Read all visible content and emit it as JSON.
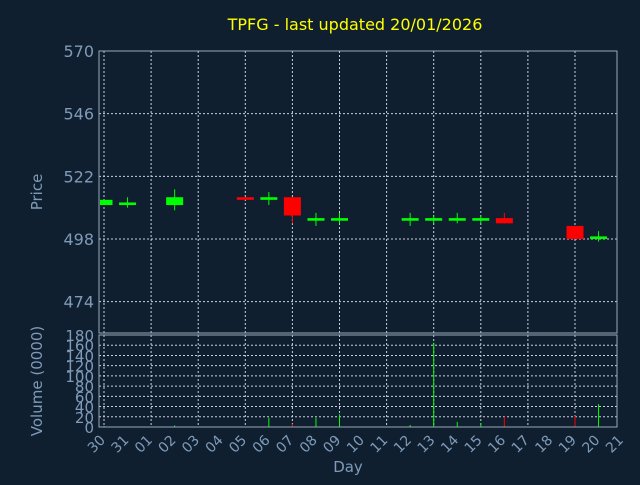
{
  "chart_data": {
    "type": "candlestick",
    "title": "TPFG - last updated 20/01/2026",
    "xlabel": "Day",
    "colors": {
      "up": "#00ff00",
      "down": "#ff0000",
      "title": "#ffff00",
      "axis_text": "#7f9bb8",
      "background": "#0f1f30"
    },
    "price_panel": {
      "ylabel": "Price",
      "ylim": [
        462,
        570
      ],
      "yticks": [
        474,
        498,
        522,
        546,
        570
      ],
      "grid": true
    },
    "volume_panel": {
      "ylabel": "Volume (0000)",
      "ylim": [
        0,
        180
      ],
      "yticks": [
        0,
        20,
        40,
        60,
        80,
        100,
        120,
        140,
        160,
        180
      ],
      "grid": true
    },
    "x_labels": [
      "30",
      "31",
      "01",
      "02",
      "03",
      "04",
      "05",
      "06",
      "07",
      "08",
      "09",
      "10",
      "11",
      "12",
      "13",
      "14",
      "15",
      "16",
      "17",
      "18",
      "19",
      "20",
      "21"
    ],
    "candles": [
      {
        "day": "30",
        "open": 511,
        "close": 513,
        "high": 513,
        "low": 511,
        "volume": 2
      },
      {
        "day": "31",
        "open": 511,
        "close": 512,
        "high": 514,
        "low": 510,
        "volume": 1
      },
      {
        "day": "02",
        "open": 511,
        "close": 514,
        "high": 517,
        "low": 509,
        "volume": 3
      },
      {
        "day": "05",
        "open": 514,
        "close": 513,
        "high": 514,
        "low": 513,
        "volume": 1
      },
      {
        "day": "06",
        "open": 513,
        "close": 514,
        "high": 516,
        "low": 511,
        "volume": 18
      },
      {
        "day": "07",
        "open": 514,
        "close": 507,
        "high": 514,
        "low": 504,
        "volume": 6
      },
      {
        "day": "08",
        "open": 505,
        "close": 506,
        "high": 508,
        "low": 503,
        "volume": 18
      },
      {
        "day": "09",
        "open": 505,
        "close": 506,
        "high": 508,
        "low": 504,
        "volume": 25
      },
      {
        "day": "12",
        "open": 505,
        "close": 506,
        "high": 508,
        "low": 503,
        "volume": 4
      },
      {
        "day": "13",
        "open": 505,
        "close": 506,
        "high": 507,
        "low": 504,
        "volume": 165
      },
      {
        "day": "14",
        "open": 505,
        "close": 506,
        "high": 508,
        "low": 504,
        "volume": 10
      },
      {
        "day": "15",
        "open": 505,
        "close": 506,
        "high": 507,
        "low": 504,
        "volume": 7
      },
      {
        "day": "16",
        "open": 506,
        "close": 504,
        "high": 508,
        "low": 504,
        "volume": 20
      },
      {
        "day": "19",
        "open": 503,
        "close": 498,
        "high": 503,
        "low": 498,
        "volume": 22
      },
      {
        "day": "20",
        "open": 498,
        "close": 499,
        "high": 501,
        "low": 497,
        "volume": 45
      }
    ]
  }
}
